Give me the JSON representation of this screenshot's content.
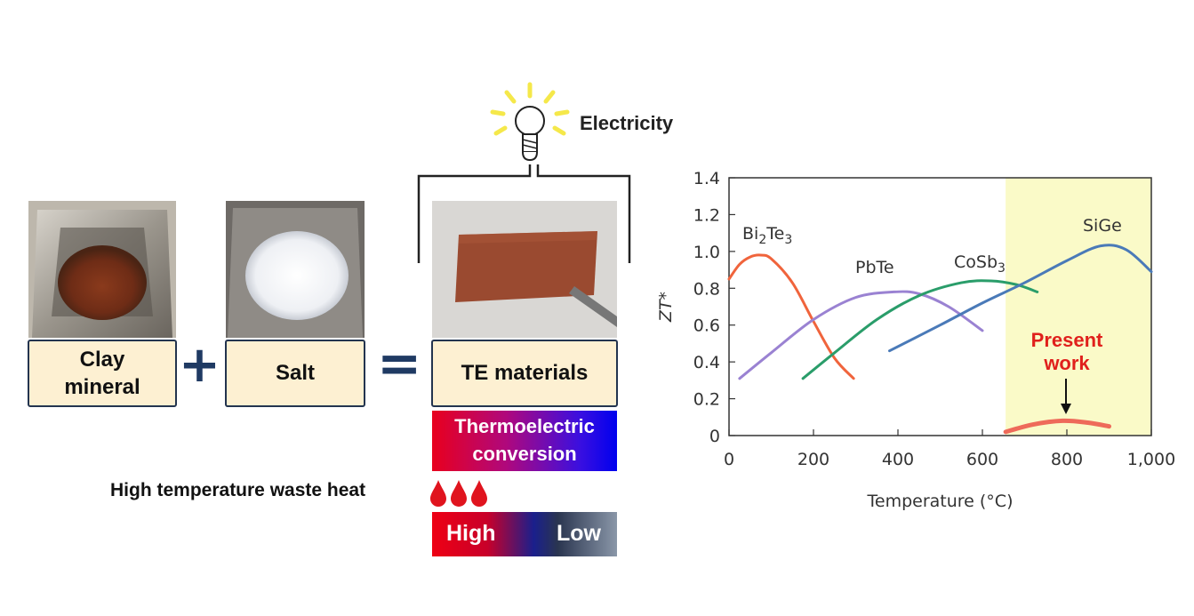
{
  "left": {
    "ingredients": [
      {
        "label_line1": "Clay",
        "label_line2": "mineral"
      },
      {
        "label_line1": "Salt",
        "label_line2": ""
      }
    ],
    "product_label": "TE materials",
    "plus_symbol": "+",
    "equals_symbol": "=",
    "electricity_label": "Electricity",
    "conversion_line1": "Thermoelectric",
    "conversion_line2": "conversion",
    "waste_heat_label": "High temperature waste heat",
    "gradient_high": "High",
    "gradient_low": "Low"
  },
  "colors": {
    "label_fill": "#fdf0d2",
    "label_border": "#23344f",
    "operator": "#1f3a63",
    "highlight_band": "#fafac8",
    "present_work": "#e0201c"
  },
  "chart_data": {
    "type": "line",
    "xlabel": "Temperature (°C)",
    "ylabel": "ZT*",
    "xlim": [
      0,
      1000
    ],
    "ylim": [
      0,
      1.4
    ],
    "x_ticks": [
      "0",
      "200",
      "400",
      "600",
      "800",
      "1,000"
    ],
    "y_ticks": [
      "0",
      "0.2",
      "0.4",
      "0.6",
      "0.8",
      "1.0",
      "1.2",
      "1.4"
    ],
    "highlight_range": [
      655,
      1000
    ],
    "series": [
      {
        "name": "Bi2Te3",
        "label_main": "Bi",
        "label_sub1": "2",
        "label_mid": "Te",
        "label_sub2": "3",
        "color": "#f0643c",
        "x": [
          0,
          25,
          50,
          75,
          100,
          150,
          200,
          250,
          295
        ],
        "y": [
          0.85,
          0.93,
          0.97,
          0.98,
          0.96,
          0.83,
          0.62,
          0.42,
          0.31
        ]
      },
      {
        "name": "PbTe",
        "label_main": "PbTe",
        "color": "#9a82d2",
        "x": [
          25,
          100,
          200,
          300,
          390,
          450,
          520,
          600
        ],
        "y": [
          0.31,
          0.45,
          0.63,
          0.75,
          0.78,
          0.77,
          0.7,
          0.57
        ]
      },
      {
        "name": "CoSb3",
        "label_main": "CoSb",
        "label_sub1": "3",
        "color": "#2a9d6a",
        "x": [
          175,
          250,
          350,
          450,
          550,
          620,
          680,
          730
        ],
        "y": [
          0.31,
          0.45,
          0.63,
          0.76,
          0.83,
          0.84,
          0.82,
          0.78
        ]
      },
      {
        "name": "SiGe",
        "label_main": "SiGe",
        "color": "#4a7ab8",
        "x": [
          380,
          500,
          600,
          700,
          800,
          880,
          940,
          1000
        ],
        "y": [
          0.46,
          0.6,
          0.72,
          0.83,
          0.95,
          1.03,
          1.01,
          0.89
        ]
      },
      {
        "name": "Present work",
        "label_line1": "Present",
        "label_line2": "work",
        "color": "#ee6a5a",
        "x": [
          655,
          720,
          790,
          850,
          900
        ],
        "y": [
          0.02,
          0.06,
          0.08,
          0.07,
          0.05
        ]
      }
    ]
  }
}
